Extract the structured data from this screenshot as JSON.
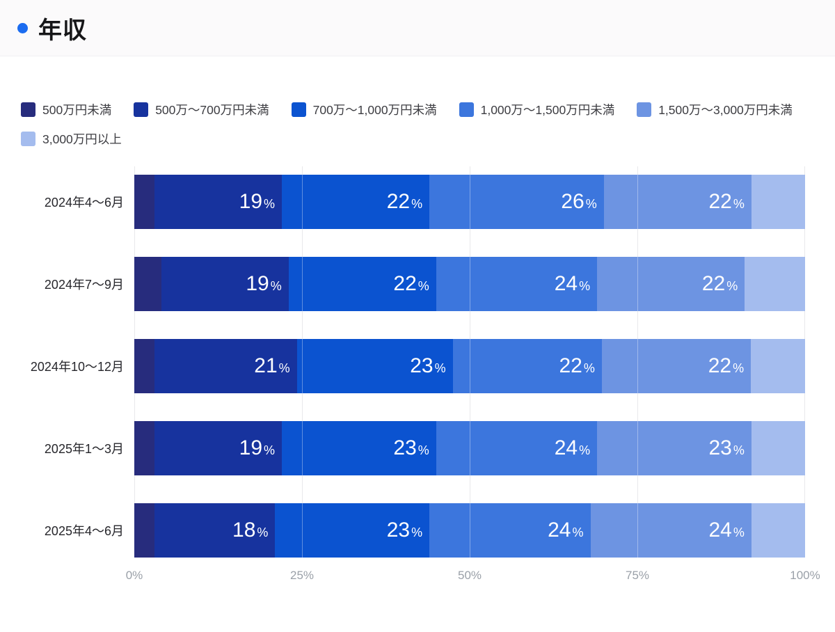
{
  "header": {
    "title": "年収",
    "accent_color": "#1b6cf0"
  },
  "legend": {
    "items": [
      {
        "label": "500万円未満",
        "color": "#272c7d"
      },
      {
        "label": "500万〜700万円未満",
        "color": "#17339e"
      },
      {
        "label": "700万〜1,000万円未満",
        "color": "#0b53d0"
      },
      {
        "label": "1,000万〜1,500万円未満",
        "color": "#3c76dd"
      },
      {
        "label": "1,500万〜3,000万円未満",
        "color": "#6d94e2"
      },
      {
        "label": "3,000万円以上",
        "color": "#a4bcee"
      }
    ]
  },
  "chart_data": {
    "type": "bar",
    "stacked": true,
    "orientation": "horizontal",
    "unit": "%",
    "title": "年収",
    "categories": [
      "2024年4〜6月",
      "2024年7〜9月",
      "2024年10〜12月",
      "2025年1〜3月",
      "2025年4〜6月"
    ],
    "series": [
      {
        "name": "500万円未満",
        "color": "#272c7d",
        "values": [
          3,
          4,
          3,
          3,
          3
        ]
      },
      {
        "name": "500万〜700万円未満",
        "color": "#17339e",
        "values": [
          19,
          19,
          21,
          19,
          18
        ]
      },
      {
        "name": "700万〜1,000万円未満",
        "color": "#0b53d0",
        "values": [
          22,
          22,
          23,
          23,
          23
        ]
      },
      {
        "name": "1,000万〜1,500万円未満",
        "color": "#3c76dd",
        "values": [
          26,
          24,
          22,
          24,
          24
        ]
      },
      {
        "name": "1,500万〜3,000万円未満",
        "color": "#6d94e2",
        "values": [
          22,
          22,
          22,
          23,
          24
        ]
      },
      {
        "name": "3,000万円以上",
        "color": "#a4bcee",
        "values": [
          8,
          9,
          8,
          8,
          8
        ]
      }
    ],
    "value_label_min": 10,
    "x_axis": {
      "range": [
        0,
        100
      ],
      "tick_positions": [
        0,
        25,
        50,
        75,
        100
      ],
      "ticks": [
        "0%",
        "25%",
        "50%",
        "75%",
        "100%"
      ]
    },
    "grid": true
  }
}
